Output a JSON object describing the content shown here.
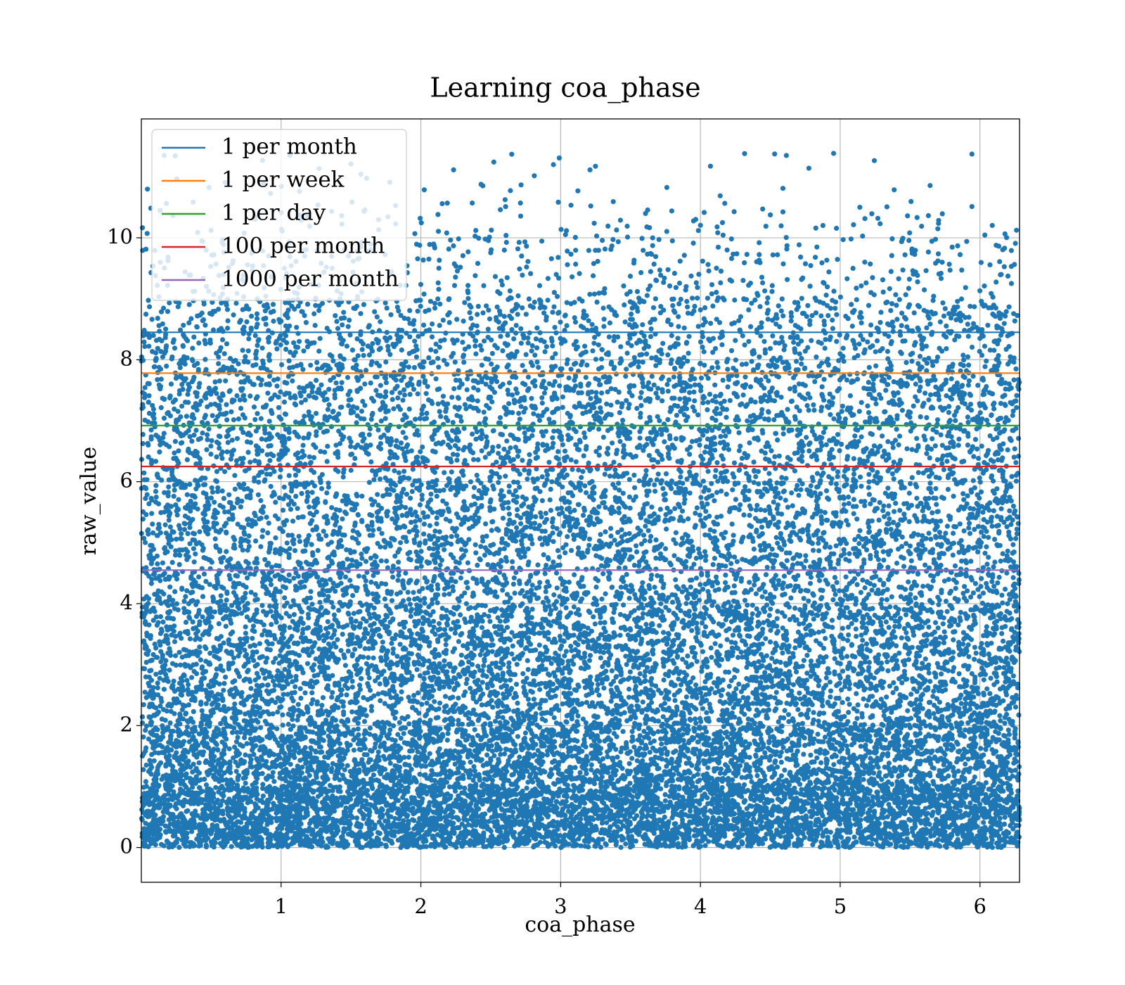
{
  "chart_data": {
    "type": "scatter",
    "title": "Learning coa_phase",
    "xlabel": "coa_phase",
    "ylabel": "raw_value",
    "xlim": [
      0.0,
      6.283
    ],
    "ylim": [
      -0.57,
      11.95
    ],
    "xticks": [
      1,
      2,
      3,
      4,
      5,
      6
    ],
    "yticks": [
      0,
      2,
      4,
      6,
      8,
      10
    ],
    "grid": true,
    "legend_position": "upper-left",
    "scatter": {
      "color": "#1f77b4",
      "approx_point_count": 20000,
      "density_profile": [
        {
          "y_range": [
            0,
            1
          ],
          "share": 0.24
        },
        {
          "y_range": [
            1,
            2
          ],
          "share": 0.16
        },
        {
          "y_range": [
            2,
            4
          ],
          "share": 0.22
        },
        {
          "y_range": [
            4,
            6
          ],
          "share": 0.16
        },
        {
          "y_range": [
            6,
            8
          ],
          "share": 0.14
        },
        {
          "y_range": [
            8,
            9
          ],
          "share": 0.05
        },
        {
          "y_range": [
            9,
            10
          ],
          "share": 0.022
        },
        {
          "y_range": [
            10,
            10.6
          ],
          "share": 0.006
        },
        {
          "y_range": [
            10.6,
            11.4
          ],
          "share": 0.002
        }
      ]
    },
    "series": [
      {
        "name": "1 per month",
        "value": 8.45,
        "color": "#1f77b4"
      },
      {
        "name": "1 per week",
        "value": 7.78,
        "color": "#ff7f0e"
      },
      {
        "name": "1 per day",
        "value": 6.92,
        "color": "#2ca02c"
      },
      {
        "name": "100 per month",
        "value": 6.25,
        "color": "#d62728"
      },
      {
        "name": "1000 per month",
        "value": 4.55,
        "color": "#9467bd"
      }
    ]
  }
}
